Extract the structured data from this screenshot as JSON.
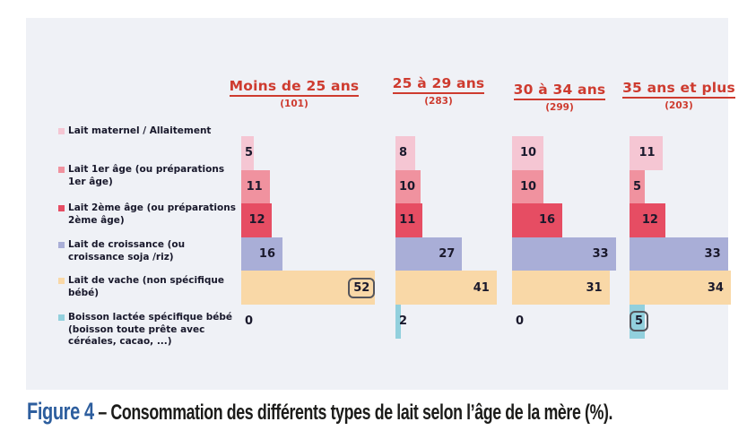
{
  "figure": {
    "caption_label": "Figure 4",
    "caption_rest": " – Consommation des différents types de lait selon l’âge de la mère (%).",
    "caption_label_color": "#2d5e9e",
    "caption_text_color": "#1c1c1a"
  },
  "colors": {
    "panel_background": "#eff1f6",
    "header_red": "#ce3b2f",
    "bar_label_text": "#1a192c",
    "highlight_box_border": "#55555c"
  },
  "chart_data": {
    "type": "bar",
    "orientation": "horizontal",
    "title": "Figure 4 – Consommation des différents types de lait selon l’âge de la mère (%).",
    "value_unit": "%",
    "grid": false,
    "axes": "none",
    "legend_position": "left",
    "categories": [
      {
        "name": "Lait maternel / Allaitement",
        "display": "Lait maternel / Allaitement",
        "color": "#f5c6d3"
      },
      {
        "name": "Lait 1er âge (ou préparations 1er âge)",
        "display": "Lait 1er âge (ou préparations\n1er âge)",
        "color": "#f0929f"
      },
      {
        "name": "Lait 2ème âge (ou préparations 2ème âge)",
        "display": "Lait 2ème âge (ou préparations\n2ème âge)",
        "color": "#e64d63"
      },
      {
        "name": "Lait de croissance (ou croissance soja/riz)",
        "display": "Lait de croissance (ou\ncroissance soja /riz)",
        "color": "#a9aed7"
      },
      {
        "name": "Lait de vache (non spécifique bébé)",
        "display": "Lait de vache (non spécifique\nbébé)",
        "color": "#f9d8a7"
      },
      {
        "name": "Boisson lactée spécifique bébé (boisson toute prête avec céréales, cacao, ...)",
        "display": "Boisson lactée spécifique bébé\n(boisson toute prête avec\ncéréales, cacao, ...)",
        "color": "#92d0dd"
      }
    ],
    "groups": [
      {
        "label": "Moins de 25 ans",
        "count": "(101)",
        "values": [
          5,
          11,
          12,
          16,
          52,
          0
        ],
        "boxed_index": 4
      },
      {
        "label": "25 à 29 ans",
        "count": "(283)",
        "values": [
          8,
          10,
          11,
          27,
          41,
          2
        ],
        "boxed_index": null
      },
      {
        "label": "30 à 34 ans",
        "count": "(299)",
        "values": [
          10,
          10,
          16,
          33,
          31,
          0
        ],
        "boxed_index": null
      },
      {
        "label": "35 ans et plus",
        "count": "(203)",
        "values": [
          11,
          5,
          12,
          33,
          34,
          5
        ],
        "boxed_index": 5
      }
    ]
  }
}
